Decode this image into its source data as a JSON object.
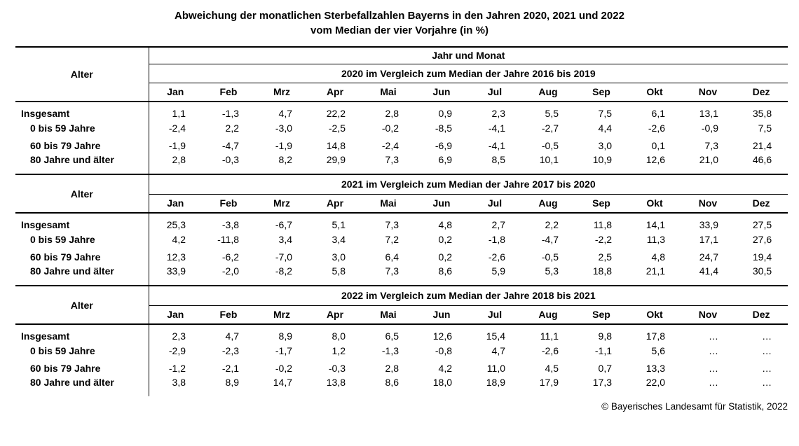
{
  "title": {
    "line1": "Abweichung der monatlichen Sterbefallzahlen Bayerns in den Jahren 2020, 2021 und 2022",
    "line2": "vom Median der vier Vorjahre (in %)"
  },
  "table": {
    "alter_label": "Alter",
    "jahr_und_monat_label": "Jahr und Monat",
    "months": [
      "Jan",
      "Feb",
      "Mrz",
      "Apr",
      "Mai",
      "Jun",
      "Jul",
      "Aug",
      "Sep",
      "Okt",
      "Nov",
      "Dez"
    ],
    "blocks": [
      {
        "year_header": "2020 im Vergleich zum Median der Jahre 2016 bis 2019",
        "rows": [
          {
            "label": "Insgesamt",
            "indent": false,
            "values": [
              "1,1",
              "-1,3",
              "4,7",
              "22,2",
              "2,8",
              "0,9",
              "2,3",
              "5,5",
              "7,5",
              "6,1",
              "13,1",
              "35,8"
            ]
          },
          {
            "label": "0 bis 59 Jahre",
            "indent": true,
            "values": [
              "-2,4",
              "2,2",
              "-3,0",
              "-2,5",
              "-0,2",
              "-8,5",
              "-4,1",
              "-2,7",
              "4,4",
              "-2,6",
              "-0,9",
              "7,5"
            ]
          },
          {
            "label": "60 bis 79 Jahre",
            "indent": true,
            "values": [
              "-1,9",
              "-4,7",
              "-1,9",
              "14,8",
              "-2,4",
              "-6,9",
              "-4,1",
              "-0,5",
              "3,0",
              "0,1",
              "7,3",
              "21,4"
            ]
          },
          {
            "label": "80 Jahre und älter",
            "indent": true,
            "values": [
              "2,8",
              "-0,3",
              "8,2",
              "29,9",
              "7,3",
              "6,9",
              "8,5",
              "10,1",
              "10,9",
              "12,6",
              "21,0",
              "46,6"
            ]
          }
        ]
      },
      {
        "year_header": "2021 im Vergleich zum Median der Jahre 2017 bis 2020",
        "rows": [
          {
            "label": "Insgesamt",
            "indent": false,
            "values": [
              "25,3",
              "-3,8",
              "-6,7",
              "5,1",
              "7,3",
              "4,8",
              "2,7",
              "2,2",
              "11,8",
              "14,1",
              "33,9",
              "27,5"
            ]
          },
          {
            "label": "0 bis 59 Jahre",
            "indent": true,
            "values": [
              "4,2",
              "-11,8",
              "3,4",
              "3,4",
              "7,2",
              "0,2",
              "-1,8",
              "-4,7",
              "-2,2",
              "11,3",
              "17,1",
              "27,6"
            ]
          },
          {
            "label": "60 bis 79 Jahre",
            "indent": true,
            "values": [
              "12,3",
              "-6,2",
              "-7,0",
              "3,0",
              "6,4",
              "0,2",
              "-2,6",
              "-0,5",
              "2,5",
              "4,8",
              "24,7",
              "19,4"
            ]
          },
          {
            "label": "80 Jahre und älter",
            "indent": true,
            "values": [
              "33,9",
              "-2,0",
              "-8,2",
              "5,8",
              "7,3",
              "8,6",
              "5,9",
              "5,3",
              "18,8",
              "21,1",
              "41,4",
              "30,5"
            ]
          }
        ]
      },
      {
        "year_header": "2022 im Vergleich zum Median der Jahre 2018 bis 2021",
        "rows": [
          {
            "label": "Insgesamt",
            "indent": false,
            "values": [
              "2,3",
              "4,7",
              "8,9",
              "8,0",
              "6,5",
              "12,6",
              "15,4",
              "11,1",
              "9,8",
              "17,8",
              "…",
              "…"
            ]
          },
          {
            "label": "0 bis 59 Jahre",
            "indent": true,
            "values": [
              "-2,9",
              "-2,3",
              "-1,7",
              "1,2",
              "-1,3",
              "-0,8",
              "4,7",
              "-2,6",
              "-1,1",
              "5,6",
              "…",
              "…"
            ]
          },
          {
            "label": "60 bis 79 Jahre",
            "indent": true,
            "values": [
              "-1,2",
              "-2,1",
              "-0,2",
              "-0,3",
              "2,8",
              "4,2",
              "11,0",
              "4,5",
              "0,7",
              "13,3",
              "…",
              "…"
            ]
          },
          {
            "label": "80 Jahre und älter",
            "indent": true,
            "values": [
              "3,8",
              "8,9",
              "14,7",
              "13,8",
              "8,6",
              "18,0",
              "18,9",
              "17,9",
              "17,3",
              "22,0",
              "…",
              "…"
            ]
          }
        ]
      }
    ]
  },
  "footer": {
    "copyright": "© Bayerisches Landesamt für Statistik, 2022"
  }
}
